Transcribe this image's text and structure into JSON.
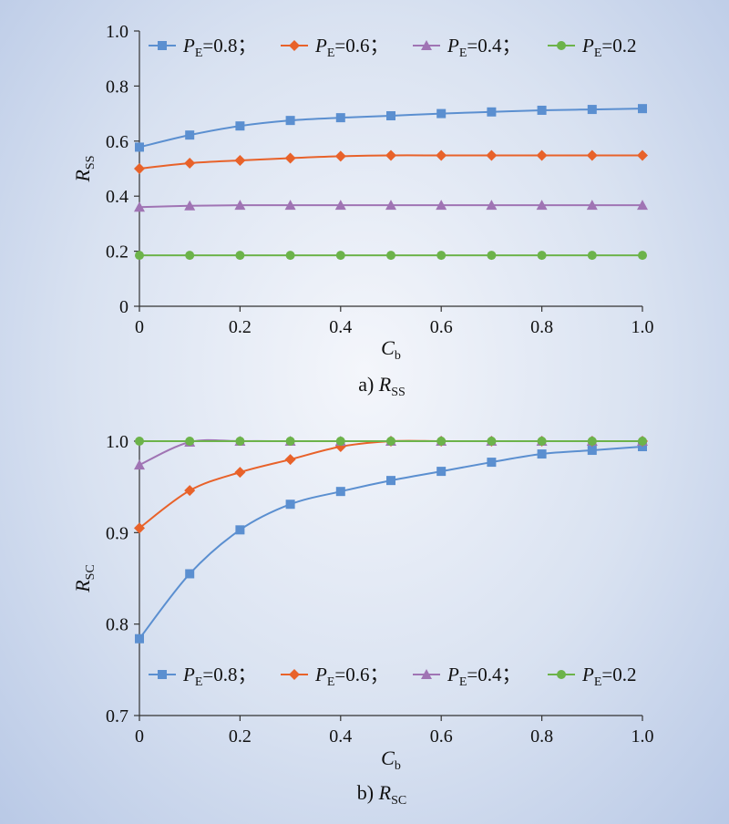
{
  "chart_data": [
    {
      "type": "line",
      "caption_prefix": "a) ",
      "caption_var": "R",
      "caption_sub": "SS",
      "xlabel_var": "C",
      "xlabel_sub": "b",
      "ylabel_var": "R",
      "ylabel_sub": "SS",
      "xlim": [
        0,
        1.0
      ],
      "ylim": [
        0,
        1.0
      ],
      "xticks": [
        "0",
        "0.2",
        "0.4",
        "0.6",
        "0.8",
        "1.0"
      ],
      "xtick_values": [
        0,
        0.2,
        0.4,
        0.6,
        0.8,
        1.0
      ],
      "yticks": [
        "0",
        "0.2",
        "0.4",
        "0.6",
        "0.8",
        "1.0"
      ],
      "ytick_values": [
        0,
        0.2,
        0.4,
        0.6,
        0.8,
        1.0
      ],
      "grid": false,
      "legend_placement": "top",
      "x": [
        0,
        0.1,
        0.2,
        0.3,
        0.4,
        0.5,
        0.6,
        0.7,
        0.8,
        0.9,
        1.0
      ],
      "series": [
        {
          "name_var": "P",
          "name_sub": "E",
          "name_rest": "=0.8；",
          "color": "#5b8fd0",
          "marker": "square",
          "values": [
            0.578,
            0.622,
            0.655,
            0.675,
            0.685,
            0.692,
            0.7,
            0.706,
            0.712,
            0.715,
            0.718
          ]
        },
        {
          "name_var": "P",
          "name_sub": "E",
          "name_rest": "=0.6；",
          "color": "#e8622a",
          "marker": "diamond",
          "values": [
            0.5,
            0.52,
            0.53,
            0.538,
            0.545,
            0.548,
            0.548,
            0.548,
            0.548,
            0.548,
            0.548
          ]
        },
        {
          "name_var": "P",
          "name_sub": "E",
          "name_rest": "=0.4；",
          "color": "#a074b4",
          "marker": "triangle",
          "values": [
            0.36,
            0.365,
            0.367,
            0.367,
            0.367,
            0.367,
            0.367,
            0.367,
            0.367,
            0.367,
            0.367
          ]
        },
        {
          "name_var": "P",
          "name_sub": "E",
          "name_rest": "=0.2",
          "color": "#6cb34a",
          "marker": "circle",
          "values": [
            0.185,
            0.185,
            0.185,
            0.185,
            0.185,
            0.185,
            0.185,
            0.185,
            0.185,
            0.185,
            0.185
          ]
        }
      ]
    },
    {
      "type": "line",
      "caption_prefix": "b) ",
      "caption_var": "R",
      "caption_sub": "SC",
      "xlabel_var": "C",
      "xlabel_sub": "b",
      "ylabel_var": "R",
      "ylabel_sub": "SC",
      "xlim": [
        0,
        1.0
      ],
      "ylim": [
        0.7,
        1.0
      ],
      "xticks": [
        "0",
        "0.2",
        "0.4",
        "0.6",
        "0.8",
        "1.0"
      ],
      "xtick_values": [
        0,
        0.2,
        0.4,
        0.6,
        0.8,
        1.0
      ],
      "yticks": [
        "0.7",
        "0.8",
        "0.9",
        "1.0"
      ],
      "ytick_values": [
        0.7,
        0.8,
        0.9,
        1.0
      ],
      "grid": false,
      "legend_placement": "bottom",
      "x": [
        0,
        0.1,
        0.2,
        0.3,
        0.4,
        0.5,
        0.6,
        0.7,
        0.8,
        0.9,
        1.0
      ],
      "series": [
        {
          "name_var": "P",
          "name_sub": "E",
          "name_rest": "=0.8；",
          "color": "#5b8fd0",
          "marker": "square",
          "values": [
            0.784,
            0.855,
            0.903,
            0.931,
            0.945,
            0.957,
            0.967,
            0.977,
            0.986,
            0.99,
            0.994
          ]
        },
        {
          "name_var": "P",
          "name_sub": "E",
          "name_rest": "=0.6；",
          "color": "#e8622a",
          "marker": "diamond",
          "values": [
            0.905,
            0.946,
            0.966,
            0.98,
            0.994,
            1.0,
            1.0,
            1.0,
            1.0,
            1.0,
            1.0
          ]
        },
        {
          "name_var": "P",
          "name_sub": "E",
          "name_rest": "=0.4；",
          "color": "#a074b4",
          "marker": "triangle",
          "values": [
            0.974,
            0.999,
            1.0,
            1.0,
            1.0,
            1.0,
            1.0,
            1.0,
            1.0,
            1.0,
            1.0
          ]
        },
        {
          "name_var": "P",
          "name_sub": "E",
          "name_rest": "=0.2",
          "color": "#6cb34a",
          "marker": "circle",
          "values": [
            1.0,
            1.0,
            1.0,
            1.0,
            1.0,
            1.0,
            1.0,
            1.0,
            1.0,
            1.0,
            1.0
          ]
        }
      ]
    }
  ]
}
